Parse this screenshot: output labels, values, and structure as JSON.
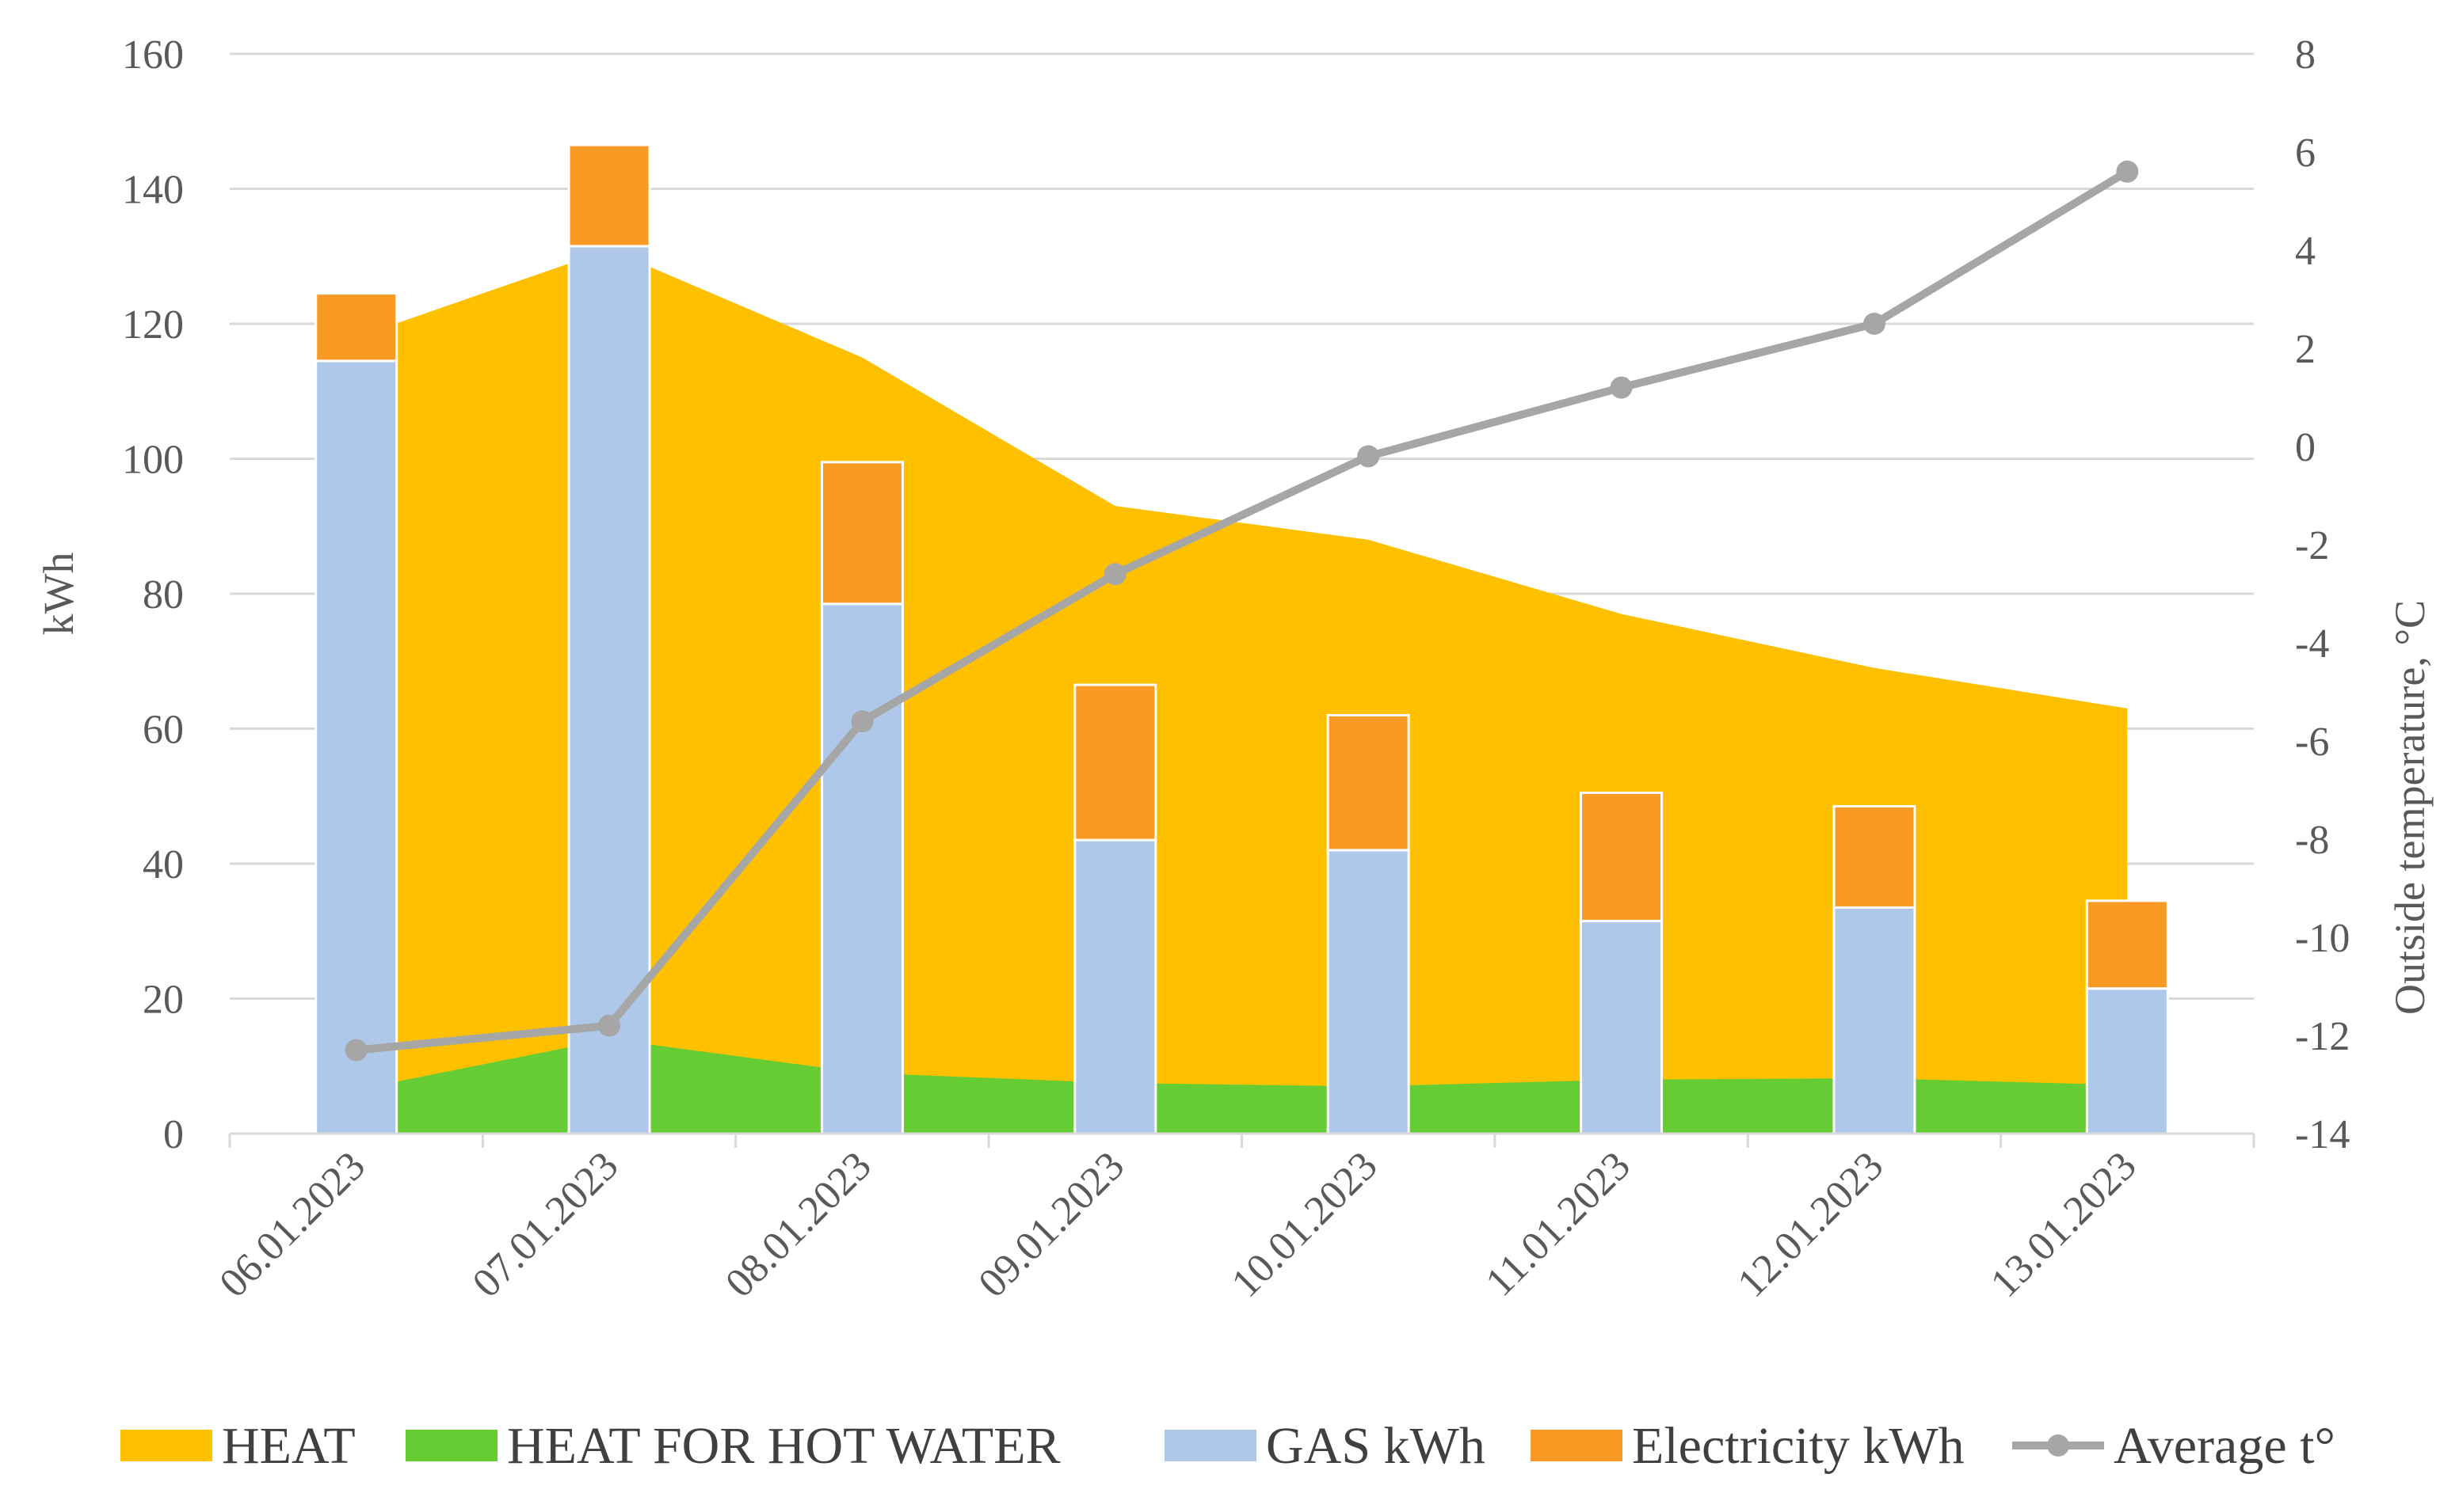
{
  "chart_data": {
    "type": "combo",
    "categories": [
      "06.01.2023",
      "07.01.2023",
      "08.01.2023",
      "09.01.2023",
      "10.01.2023",
      "11.01.2023",
      "12.01.2023",
      "13.01.2023"
    ],
    "series": [
      {
        "name": "HEAT",
        "kind": "area",
        "axis": "left",
        "color": "#FFC000",
        "values": [
          118,
          131,
          115,
          93,
          88,
          77,
          69,
          63
        ]
      },
      {
        "name": "HEAT FOR HOT WATER",
        "kind": "area",
        "axis": "left",
        "color": "#66CC33",
        "values": [
          6.5,
          14,
          9,
          7.5,
          7,
          8,
          8.2,
          7.2
        ]
      },
      {
        "name": "GAS kWh",
        "kind": "bar",
        "axis": "left",
        "stack": "energy",
        "color": "#AFC8E9",
        "values": [
          114.5,
          131.5,
          78.5,
          43.5,
          42,
          31.5,
          33.5,
          21.5
        ]
      },
      {
        "name": "Electricity kWh",
        "kind": "bar",
        "axis": "left",
        "stack": "energy",
        "color": "#F99A24",
        "values": [
          10,
          15,
          21,
          23,
          20,
          19,
          15,
          13
        ]
      },
      {
        "name": "Average t°",
        "kind": "line",
        "axis": "right",
        "color": "#A6A6A6",
        "values": [
          -12.3,
          -11.8,
          -5.6,
          -2.6,
          -0.2,
          1.2,
          2.5,
          5.6
        ]
      }
    ],
    "ylabel": "kWh",
    "ylim": [
      0,
      160
    ],
    "yticks": [
      0,
      20,
      40,
      60,
      80,
      100,
      120,
      140,
      160
    ],
    "y2label": "Outside temperature, °C",
    "y2lim": [
      -14,
      8
    ],
    "y2ticks": [
      -14,
      -12,
      -10,
      -8,
      -6,
      -4,
      -2,
      0,
      2,
      4,
      6,
      8
    ],
    "grid": true,
    "legend_position": "bottom"
  }
}
